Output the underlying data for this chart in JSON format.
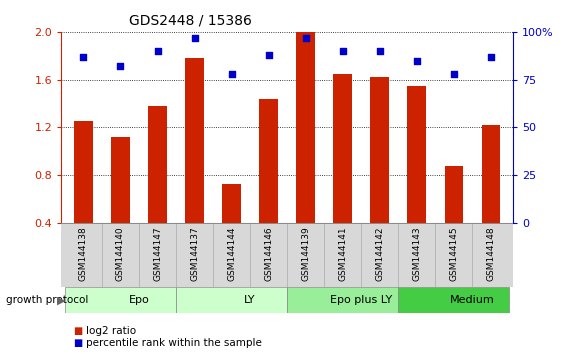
{
  "title": "GDS2448 / 15386",
  "samples": [
    "GSM144138",
    "GSM144140",
    "GSM144147",
    "GSM144137",
    "GSM144144",
    "GSM144146",
    "GSM144139",
    "GSM144141",
    "GSM144142",
    "GSM144143",
    "GSM144145",
    "GSM144148"
  ],
  "log2_ratio": [
    1.25,
    1.12,
    1.38,
    1.78,
    0.73,
    1.44,
    2.0,
    1.65,
    1.62,
    1.55,
    0.88,
    1.22
  ],
  "percentile_rank": [
    87,
    82,
    90,
    97,
    78,
    88,
    97,
    90,
    90,
    85,
    78,
    87
  ],
  "bar_color": "#cc2200",
  "dot_color": "#0000cc",
  "ylim_left": [
    0.4,
    2.0
  ],
  "ylim_right": [
    0,
    100
  ],
  "yticks_left": [
    0.4,
    0.8,
    1.2,
    1.6,
    2.0
  ],
  "yticks_right": [
    0,
    25,
    50,
    75,
    100
  ],
  "ytick_labels_right": [
    "0",
    "25",
    "50",
    "75",
    "100%"
  ],
  "groups": [
    {
      "label": "Epo",
      "start": 0,
      "end": 3,
      "color": "#ccffcc"
    },
    {
      "label": "LY",
      "start": 3,
      "end": 6,
      "color": "#ccffcc"
    },
    {
      "label": "Epo plus LY",
      "start": 6,
      "end": 9,
      "color": "#99ee99"
    },
    {
      "label": "Medium",
      "start": 9,
      "end": 12,
      "color": "#44cc44"
    }
  ],
  "group_label": "growth protocol",
  "legend_bar_label": "log2 ratio",
  "legend_dot_label": "percentile rank within the sample",
  "bar_color_light": "#cc2200",
  "dot_color_hex": "#0000cc",
  "bar_width": 0.5,
  "xlim": [
    -0.6,
    11.6
  ]
}
